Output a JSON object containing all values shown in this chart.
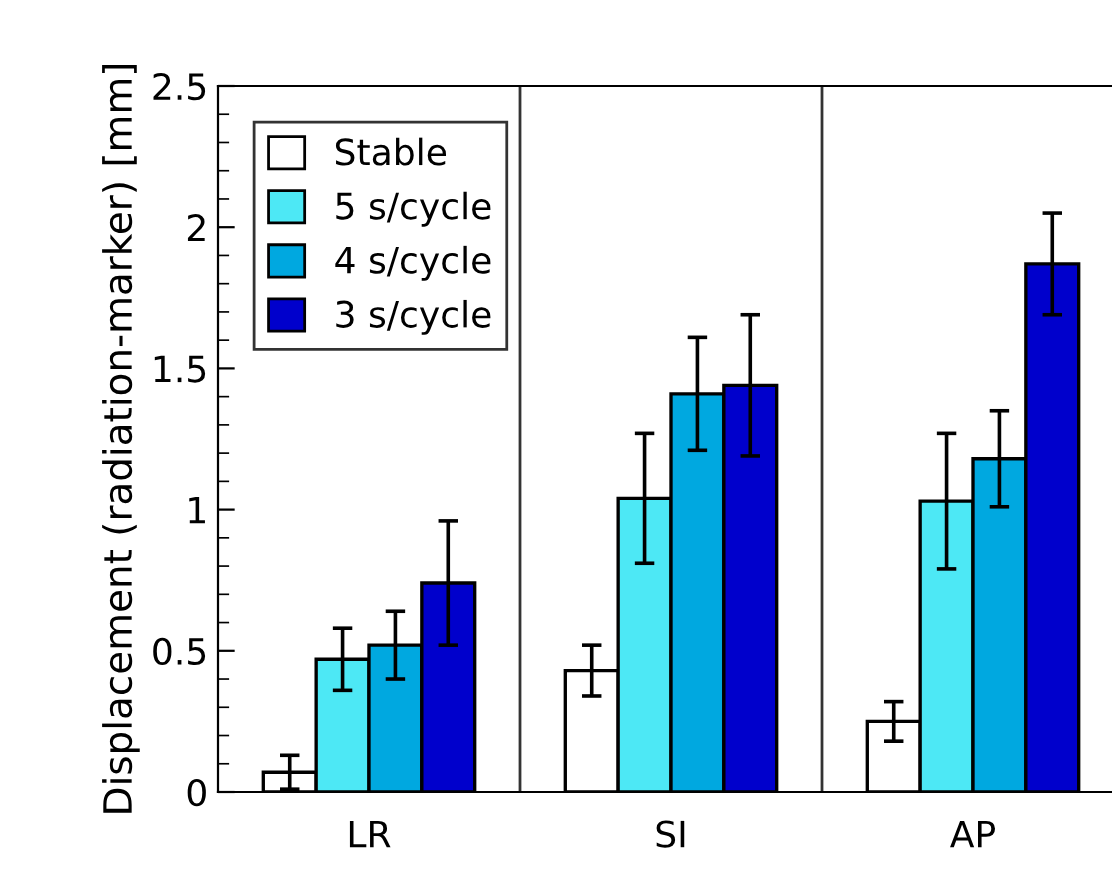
{
  "chart_data": {
    "type": "bar",
    "ylabel": "Displacement (radiation-marker) [mm]",
    "categories": [
      "LR",
      "SI",
      "AP"
    ],
    "series": [
      {
        "name": "Stable",
        "color": "#ffffff",
        "values": [
          0.07,
          0.43,
          0.25
        ],
        "errors": [
          0.06,
          0.09,
          0.07
        ]
      },
      {
        "name": "5 s/cycle",
        "color": "#4de8f5",
        "values": [
          0.47,
          1.04,
          1.03
        ],
        "errors": [
          0.11,
          0.23,
          0.24
        ]
      },
      {
        "name": "4 s/cycle",
        "color": "#00a8e0",
        "values": [
          0.52,
          1.41,
          1.18
        ],
        "errors": [
          0.12,
          0.2,
          0.17
        ]
      },
      {
        "name": "3 s/cycle",
        "color": "#0000cc",
        "values": [
          0.74,
          1.44,
          1.87
        ],
        "errors": [
          0.22,
          0.25,
          0.18
        ]
      }
    ],
    "ylim": [
      0,
      2.5
    ],
    "yticks": [
      0,
      0.5,
      1,
      1.5,
      2,
      {
        "value": 2.5,
        "label": "2.5"
      }
    ],
    "legend": "top left",
    "grid": false
  }
}
